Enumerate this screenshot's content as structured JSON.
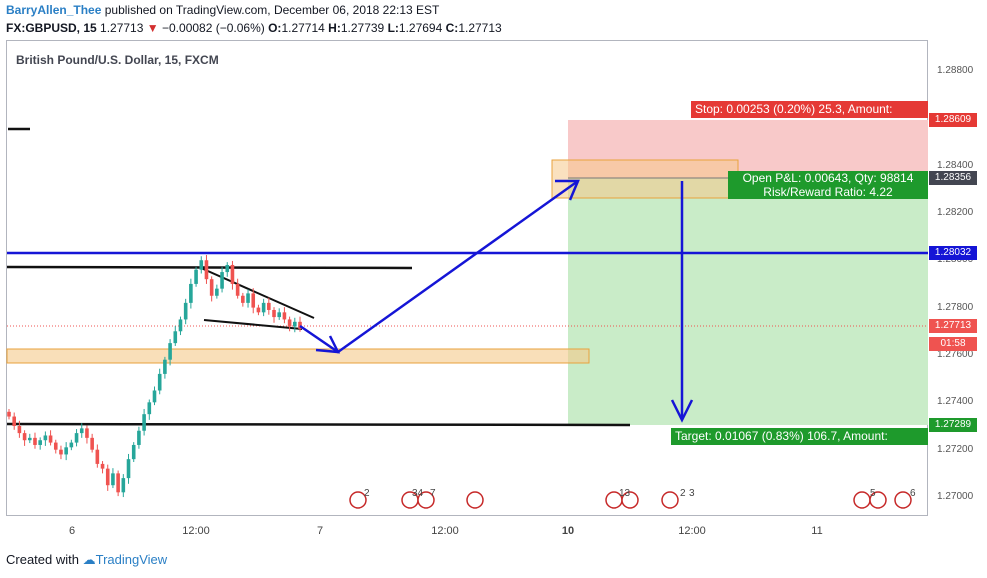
{
  "header": {
    "author": "BarryAllen_Thee",
    "published": "published on TradingView.com, December 06, 2018 22:13 EST",
    "symbol_line": "FX:GBPUSD, 15",
    "last": "1.27713",
    "change": "−0.00082 (−0.06%)",
    "o_label": "O:",
    "o": "1.27714",
    "h_label": "H:",
    "h": "1.27739",
    "l_label": "L:",
    "l": "1.27694",
    "c_label": "C:",
    "c": "1.27713"
  },
  "chart_title": "British Pound/U.S. Dollar, 15, FXCM",
  "footer": {
    "created_with": "Created with",
    "brand": "TradingView"
  },
  "tags": {
    "stop": "Stop: 0.00253 (0.20%) 25.3, Amount:",
    "pnl_line1": "Open P&L: 0.00643, Qty: 98814",
    "pnl_line2": "Risk/Reward Ratio: 4.22",
    "target": "Target: 0.01067 (0.83%) 106.7, Amount:"
  },
  "price_boxes": {
    "stop": "1.28609",
    "entry": "1.28356",
    "blue": "1.28032",
    "last": "1.27713",
    "countdown": "01:58",
    "target": "1.27289"
  },
  "colors": {
    "stop_zone": "#f8c9c9",
    "target_zone": "#c9ecc8",
    "blue_line": "#1515d6",
    "up": "#26a69a",
    "down": "#ef5350",
    "orange_zone": "#f5c98a",
    "stop_tag": "#e53935",
    "target_tag": "#1e9a2c"
  },
  "event_markers": {
    "counts": [
      "2",
      "34",
      "7",
      "13",
      "2",
      "3",
      "5",
      "6"
    ]
  },
  "chart_data": {
    "type": "candlestick",
    "title": "British Pound/U.S. Dollar, 15, FXCM",
    "x_ticks": [
      "6",
      "12:00",
      "7",
      "12:00",
      "10",
      "12:00",
      "11"
    ],
    "y_ticks": [
      "1.28800",
      "1.28400",
      "1.28200",
      "1.28000",
      "1.27800",
      "1.27600",
      "1.27400",
      "1.27200",
      "1.27000"
    ],
    "ylim": [
      1.2692,
      1.2893
    ],
    "levels": {
      "stop": 1.28609,
      "entry": 1.28356,
      "blue_resistance": 1.28032,
      "last": 1.27713,
      "target": 1.27289
    },
    "candles_close": [
      1.2734,
      1.273,
      1.2727,
      1.2724,
      1.2725,
      1.2722,
      1.2724,
      1.2726,
      1.2723,
      1.272,
      1.2718,
      1.2721,
      1.2723,
      1.2727,
      1.2729,
      1.2725,
      1.272,
      1.2714,
      1.2712,
      1.2705,
      1.271,
      1.2702,
      1.2708,
      1.2716,
      1.2722,
      1.2728,
      1.2735,
      1.274,
      1.2745,
      1.2752,
      1.2758,
      1.2765,
      1.277,
      1.2775,
      1.2782,
      1.279,
      1.2796,
      1.28,
      1.2792,
      1.2785,
      1.2788,
      1.2795,
      1.2798,
      1.279,
      1.2785,
      1.2782,
      1.2786,
      1.278,
      1.2778,
      1.2782,
      1.2779,
      1.2776,
      1.2778,
      1.2775,
      1.2772,
      1.2774,
      1.2771
    ]
  }
}
